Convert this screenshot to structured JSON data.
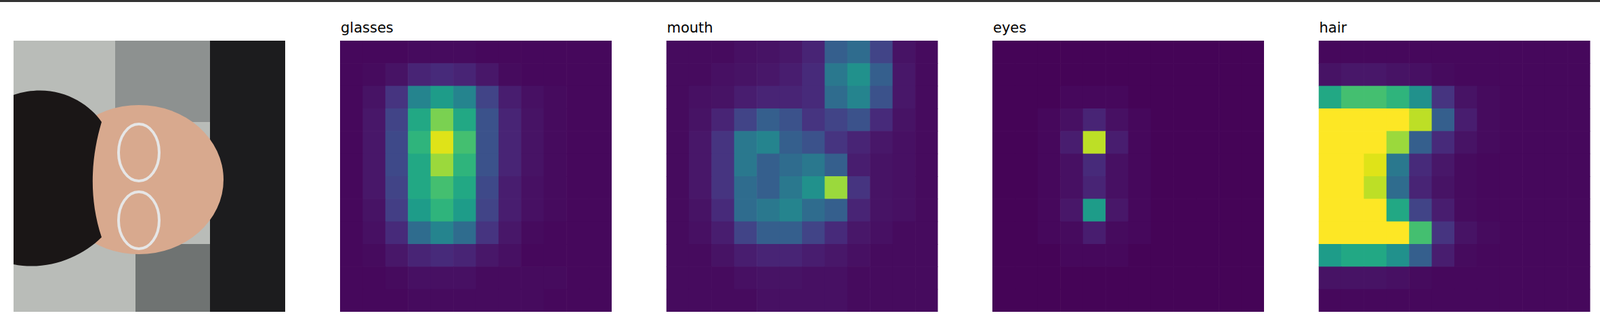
{
  "chart_data": [
    {
      "type": "heatmap",
      "title": "glasses",
      "tick_labels": false,
      "zlim": [
        0,
        1
      ],
      "cells": [
        [
          0.02,
          0.02,
          0.02,
          0.03,
          0.03,
          0.03,
          0.02,
          0.02,
          0.02,
          0.02,
          0.02,
          0.02
        ],
        [
          0.02,
          0.03,
          0.05,
          0.1,
          0.12,
          0.1,
          0.06,
          0.03,
          0.02,
          0.02,
          0.02,
          0.02
        ],
        [
          0.02,
          0.05,
          0.15,
          0.45,
          0.55,
          0.45,
          0.2,
          0.08,
          0.04,
          0.03,
          0.02,
          0.02
        ],
        [
          0.02,
          0.06,
          0.2,
          0.6,
          0.8,
          0.6,
          0.25,
          0.1,
          0.05,
          0.03,
          0.02,
          0.02
        ],
        [
          0.02,
          0.06,
          0.22,
          0.65,
          0.95,
          0.7,
          0.25,
          0.1,
          0.05,
          0.03,
          0.02,
          0.02
        ],
        [
          0.02,
          0.06,
          0.22,
          0.6,
          0.85,
          0.65,
          0.25,
          0.1,
          0.05,
          0.03,
          0.02,
          0.02
        ],
        [
          0.02,
          0.06,
          0.2,
          0.6,
          0.7,
          0.6,
          0.22,
          0.08,
          0.04,
          0.03,
          0.02,
          0.02
        ],
        [
          0.02,
          0.05,
          0.18,
          0.55,
          0.65,
          0.55,
          0.2,
          0.08,
          0.04,
          0.03,
          0.02,
          0.02
        ],
        [
          0.02,
          0.04,
          0.12,
          0.35,
          0.45,
          0.35,
          0.15,
          0.06,
          0.03,
          0.02,
          0.02,
          0.02
        ],
        [
          0.02,
          0.03,
          0.06,
          0.1,
          0.12,
          0.1,
          0.06,
          0.04,
          0.02,
          0.02,
          0.02,
          0.02
        ],
        [
          0.02,
          0.02,
          0.03,
          0.04,
          0.04,
          0.04,
          0.03,
          0.03,
          0.03,
          0.03,
          0.02,
          0.02
        ],
        [
          0.02,
          0.02,
          0.02,
          0.03,
          0.03,
          0.03,
          0.03,
          0.03,
          0.03,
          0.02,
          0.02,
          0.02
        ]
      ]
    },
    {
      "type": "heatmap",
      "title": "mouth",
      "tick_labels": false,
      "zlim": [
        0,
        1
      ],
      "cells": [
        [
          0.03,
          0.03,
          0.03,
          0.04,
          0.05,
          0.06,
          0.1,
          0.3,
          0.35,
          0.2,
          0.05,
          0.03
        ],
        [
          0.03,
          0.03,
          0.04,
          0.05,
          0.06,
          0.08,
          0.12,
          0.4,
          0.5,
          0.3,
          0.06,
          0.03
        ],
        [
          0.03,
          0.04,
          0.05,
          0.08,
          0.1,
          0.1,
          0.12,
          0.35,
          0.45,
          0.25,
          0.06,
          0.03
        ],
        [
          0.03,
          0.05,
          0.1,
          0.2,
          0.3,
          0.25,
          0.15,
          0.2,
          0.25,
          0.12,
          0.05,
          0.03
        ],
        [
          0.03,
          0.06,
          0.15,
          0.4,
          0.45,
          0.3,
          0.25,
          0.15,
          0.1,
          0.06,
          0.04,
          0.03
        ],
        [
          0.03,
          0.06,
          0.15,
          0.4,
          0.3,
          0.35,
          0.4,
          0.3,
          0.08,
          0.05,
          0.04,
          0.03
        ],
        [
          0.03,
          0.06,
          0.15,
          0.35,
          0.3,
          0.4,
          0.5,
          0.85,
          0.15,
          0.05,
          0.04,
          0.03
        ],
        [
          0.03,
          0.05,
          0.12,
          0.35,
          0.4,
          0.45,
          0.35,
          0.3,
          0.1,
          0.05,
          0.04,
          0.03
        ],
        [
          0.03,
          0.04,
          0.08,
          0.2,
          0.3,
          0.3,
          0.2,
          0.12,
          0.06,
          0.04,
          0.03,
          0.03
        ],
        [
          0.03,
          0.03,
          0.05,
          0.08,
          0.1,
          0.1,
          0.08,
          0.06,
          0.04,
          0.03,
          0.03,
          0.03
        ],
        [
          0.03,
          0.03,
          0.03,
          0.04,
          0.05,
          0.05,
          0.04,
          0.04,
          0.03,
          0.03,
          0.03,
          0.03
        ],
        [
          0.03,
          0.03,
          0.03,
          0.03,
          0.04,
          0.04,
          0.04,
          0.04,
          0.03,
          0.03,
          0.03,
          0.03
        ]
      ]
    },
    {
      "type": "heatmap",
      "title": "eyes",
      "tick_labels": false,
      "zlim": [
        0,
        1
      ],
      "cells": [
        [
          0.01,
          0.01,
          0.01,
          0.01,
          0.01,
          0.01,
          0.01,
          0.01,
          0.01,
          0.01,
          0.01,
          0.01
        ],
        [
          0.01,
          0.01,
          0.01,
          0.01,
          0.01,
          0.01,
          0.01,
          0.01,
          0.01,
          0.01,
          0.01,
          0.01
        ],
        [
          0.01,
          0.01,
          0.01,
          0.02,
          0.02,
          0.02,
          0.01,
          0.01,
          0.01,
          0.01,
          0.01,
          0.01
        ],
        [
          0.01,
          0.01,
          0.02,
          0.04,
          0.1,
          0.04,
          0.02,
          0.01,
          0.01,
          0.01,
          0.01,
          0.01
        ],
        [
          0.01,
          0.01,
          0.02,
          0.08,
          0.9,
          0.08,
          0.02,
          0.01,
          0.01,
          0.01,
          0.01,
          0.01
        ],
        [
          0.01,
          0.01,
          0.02,
          0.04,
          0.12,
          0.04,
          0.02,
          0.01,
          0.01,
          0.01,
          0.01,
          0.01
        ],
        [
          0.01,
          0.01,
          0.02,
          0.04,
          0.1,
          0.04,
          0.02,
          0.01,
          0.01,
          0.01,
          0.01,
          0.01
        ],
        [
          0.01,
          0.01,
          0.02,
          0.06,
          0.55,
          0.06,
          0.02,
          0.01,
          0.01,
          0.01,
          0.01,
          0.01
        ],
        [
          0.01,
          0.01,
          0.02,
          0.03,
          0.08,
          0.03,
          0.02,
          0.01,
          0.01,
          0.01,
          0.01,
          0.01
        ],
        [
          0.01,
          0.01,
          0.01,
          0.02,
          0.02,
          0.02,
          0.01,
          0.01,
          0.01,
          0.01,
          0.01,
          0.01
        ],
        [
          0.01,
          0.01,
          0.01,
          0.01,
          0.01,
          0.01,
          0.01,
          0.01,
          0.01,
          0.01,
          0.01,
          0.01
        ],
        [
          0.01,
          0.01,
          0.01,
          0.01,
          0.01,
          0.01,
          0.01,
          0.01,
          0.01,
          0.01,
          0.01,
          0.01
        ]
      ]
    },
    {
      "type": "heatmap",
      "title": "hair",
      "tick_labels": false,
      "zlim": [
        0,
        1
      ],
      "cells": [
        [
          0.02,
          0.02,
          0.02,
          0.02,
          0.02,
          0.02,
          0.02,
          0.02,
          0.02,
          0.02,
          0.02,
          0.02
        ],
        [
          0.05,
          0.06,
          0.06,
          0.05,
          0.04,
          0.03,
          0.02,
          0.02,
          0.02,
          0.02,
          0.02,
          0.02
        ],
        [
          0.6,
          0.7,
          0.7,
          0.65,
          0.5,
          0.15,
          0.05,
          0.03,
          0.02,
          0.02,
          0.02,
          0.02
        ],
        [
          1,
          1,
          1,
          1,
          0.9,
          0.3,
          0.08,
          0.03,
          0.02,
          0.02,
          0.02,
          0.02
        ],
        [
          1,
          1,
          1,
          0.85,
          0.3,
          0.12,
          0.05,
          0.03,
          0.02,
          0.02,
          0.02,
          0.02
        ],
        [
          1,
          1,
          0.95,
          0.4,
          0.12,
          0.06,
          0.03,
          0.02,
          0.02,
          0.02,
          0.02,
          0.02
        ],
        [
          1,
          1,
          0.9,
          0.35,
          0.1,
          0.05,
          0.03,
          0.02,
          0.02,
          0.02,
          0.02,
          0.02
        ],
        [
          1,
          1,
          1,
          0.6,
          0.2,
          0.08,
          0.03,
          0.02,
          0.02,
          0.02,
          0.02,
          0.02
        ],
        [
          1,
          1,
          1,
          1,
          0.7,
          0.15,
          0.05,
          0.03,
          0.02,
          0.02,
          0.02,
          0.02
        ],
        [
          0.55,
          0.6,
          0.6,
          0.5,
          0.3,
          0.08,
          0.03,
          0.02,
          0.02,
          0.02,
          0.02,
          0.02
        ],
        [
          0.05,
          0.05,
          0.05,
          0.04,
          0.03,
          0.02,
          0.02,
          0.02,
          0.02,
          0.02,
          0.02,
          0.02
        ],
        [
          0.02,
          0.02,
          0.02,
          0.02,
          0.02,
          0.02,
          0.02,
          0.02,
          0.02,
          0.02,
          0.02,
          0.02
        ]
      ]
    }
  ]
}
